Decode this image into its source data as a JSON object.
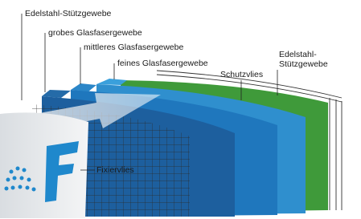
{
  "labels": {
    "edelstahl_left": "Edelstahl-Stützgewebe",
    "grobes": "grobes Glasfasergewebe",
    "mittleres": "mittleres Glasfasergewebe",
    "feines": "feines Glasfasergewebe",
    "schutzvlies": "Schutzvlies",
    "edelstahl_right": [
      "Edelstahl-",
      "Stützgewebe"
    ],
    "fixiervlies": "Fixiervlies"
  }
}
